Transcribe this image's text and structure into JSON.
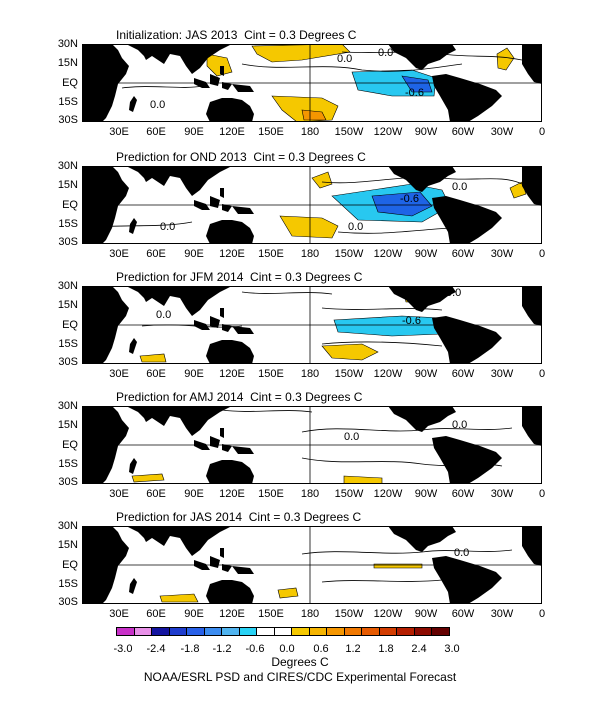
{
  "panels": [
    {
      "title": "Initialization: JAS 2013  Cint = 0.3 Degrees C",
      "labels": [
        "0.0",
        "0.0",
        "0.0",
        "-0.6"
      ]
    },
    {
      "title": "Prediction for OND 2013  Cint = 0.3 Degrees C",
      "labels": [
        "0.0",
        "0.0",
        "0.0",
        "-0.6"
      ]
    },
    {
      "title": "Prediction for JFM 2014  Cint = 0.3 Degrees C",
      "labels": [
        "0.0",
        "0.0",
        "-0.6"
      ]
    },
    {
      "title": "Prediction for AMJ 2014  Cint = 0.3 Degrees C",
      "labels": [
        "0.0",
        "0.0"
      ]
    },
    {
      "title": "Prediction for JAS 2014  Cint = 0.3 Degrees C",
      "labels": [
        "0.0"
      ]
    }
  ],
  "lat_labels": [
    "30N",
    "15N",
    "EQ",
    "15S",
    "30S"
  ],
  "lon_labels": [
    "30E",
    "60E",
    "90E",
    "120E",
    "150E",
    "180",
    "150W",
    "120W",
    "90W",
    "60W",
    "30W",
    "0"
  ],
  "colorbar": {
    "labels": [
      "-3.0",
      "-2.4",
      "-1.8",
      "-1.2",
      "-0.6",
      "0.0",
      "0.6",
      "1.2",
      "1.8",
      "2.4",
      "3.0"
    ],
    "colors": [
      "#c830c8",
      "#e890e8",
      "#1414a0",
      "#1e3ccd",
      "#2860e8",
      "#3c8cf0",
      "#50b4f0",
      "#28d2f5",
      "#ffffff",
      "#ffffff",
      "#f5c800",
      "#f5b400",
      "#f59600",
      "#f07800",
      "#e65a00",
      "#d23c00",
      "#b41e00",
      "#8c0a00",
      "#640000"
    ]
  },
  "units": "Degrees C",
  "credit": "NOAA/ESRL PSD and CIRES/CDC Experimental Forecast"
}
